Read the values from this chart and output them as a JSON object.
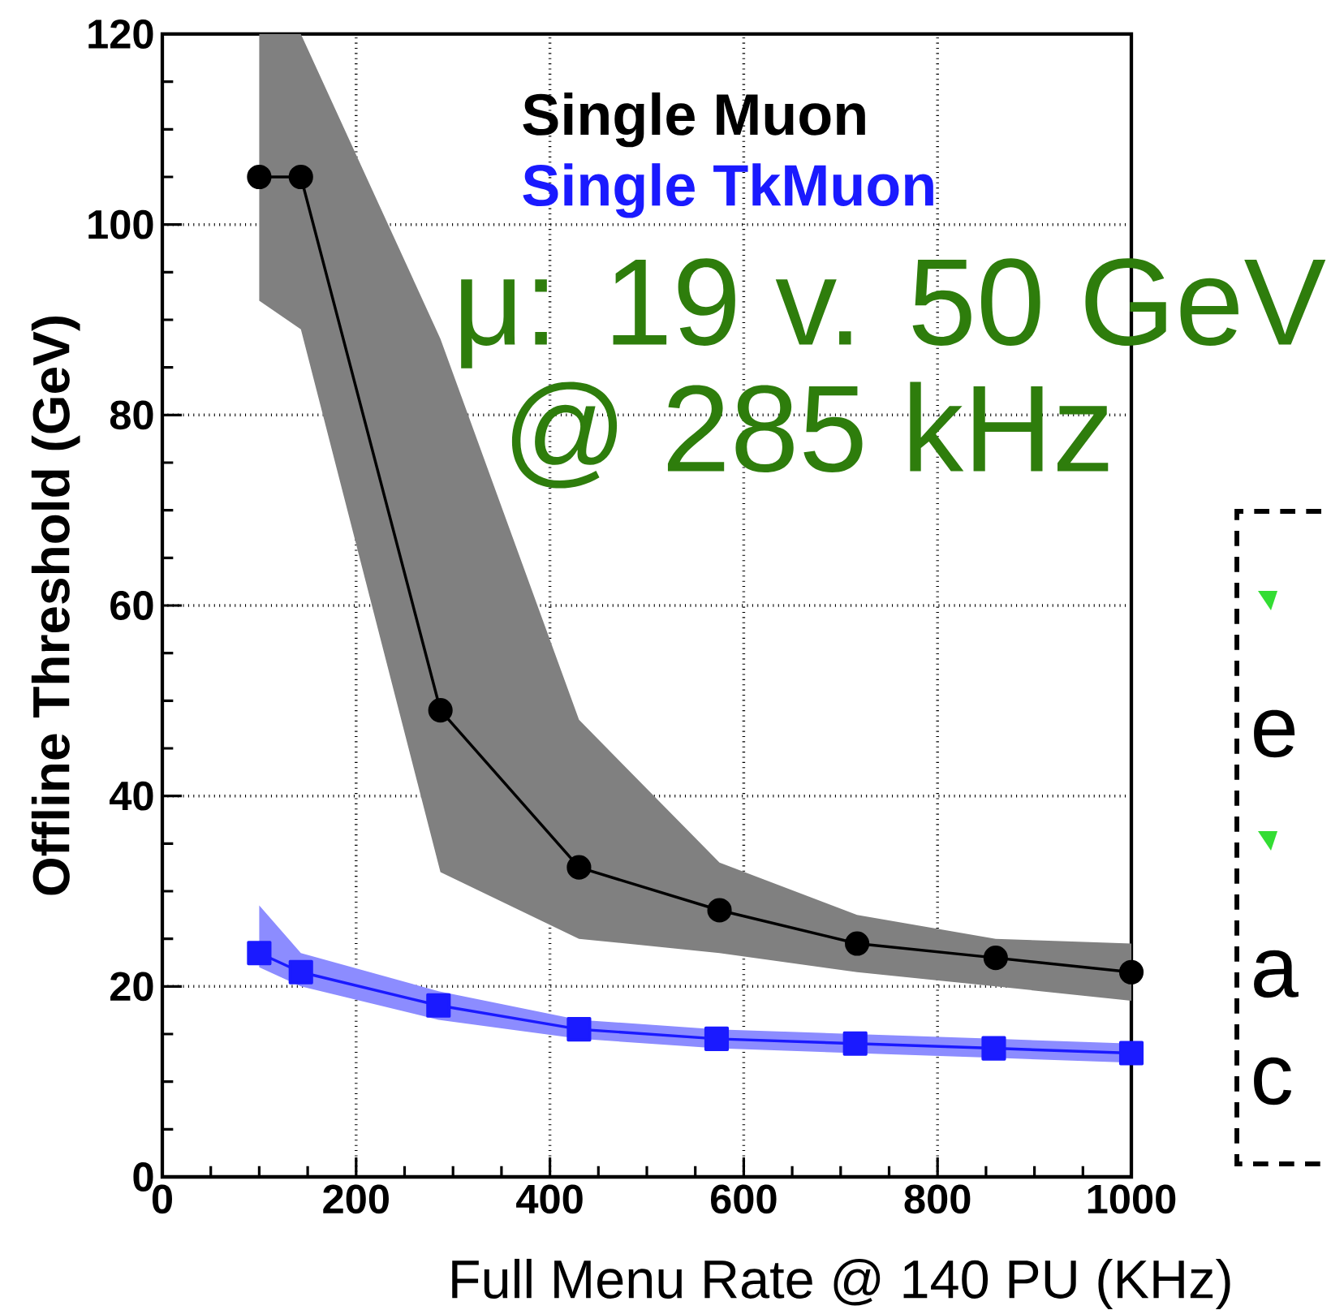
{
  "chart_data": {
    "type": "line",
    "xlabel": "Full Menu Rate @ 140 PU (KHz)",
    "ylabel": "Offline Threshold (GeV)",
    "xlim": [
      0,
      1000
    ],
    "ylim": [
      0,
      120
    ],
    "xticks": [
      0,
      200,
      400,
      600,
      800,
      1000
    ],
    "yticks": [
      0,
      20,
      40,
      60,
      80,
      100,
      120
    ],
    "grid": true,
    "legend": "top",
    "line_style": "solid",
    "series": [
      {
        "name": "Single Muon",
        "color": "#000000",
        "marker": "circle",
        "x": [
          100,
          143,
          287,
          430,
          575,
          717,
          860,
          1000
        ],
        "values": [
          105,
          105,
          49,
          32.5,
          28,
          24.5,
          23,
          21.5
        ],
        "lower": [
          92,
          89,
          32,
          25,
          23.5,
          21.5,
          20,
          18.5
        ],
        "upper": [
          120,
          120,
          88,
          48,
          33,
          27.5,
          25,
          24.5
        ]
      },
      {
        "name": "Single TkMuon",
        "color": "#1a1aff",
        "marker": "square",
        "x": [
          100,
          143,
          285,
          430,
          572,
          715,
          858,
          1000
        ],
        "values": [
          23.5,
          21.5,
          18,
          15.5,
          14.5,
          14,
          13.5,
          13
        ],
        "lower": [
          22,
          20,
          16.5,
          14.5,
          13.5,
          13,
          12.5,
          12
        ],
        "upper": [
          28.5,
          23.5,
          19.5,
          16.5,
          15.5,
          15,
          14.5,
          14
        ]
      }
    ],
    "annotations": [
      "μ: 19 v. 50 GeV",
      "@ 285 kHz",
      "e",
      "a",
      "c"
    ]
  }
}
